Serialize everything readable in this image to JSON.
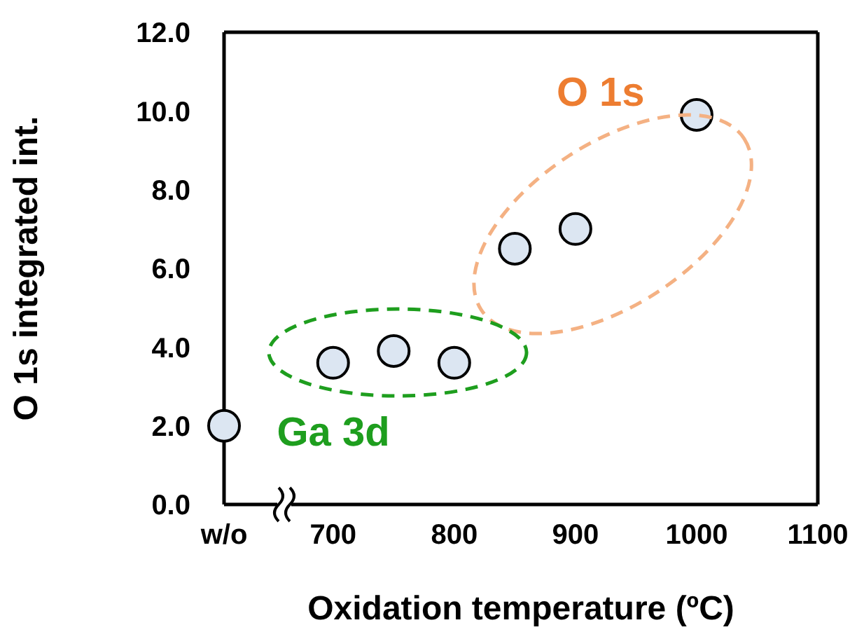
{
  "chart_data": {
    "type": "scatter",
    "xlabel": "Oxidation temperature (ºC)",
    "ylabel": "O 1s integrated int.",
    "x": [
      610,
      700,
      750,
      800,
      850,
      900,
      1000
    ],
    "values": [
      2.0,
      3.6,
      3.9,
      3.6,
      6.5,
      7.0,
      9.9
    ],
    "color": "#dce6f2",
    "marker": "circle",
    "xlim": [
      610,
      1100
    ],
    "xticks": [
      {
        "value": 610,
        "label": "w/o"
      },
      700,
      800,
      900,
      1000,
      1100
    ],
    "ylim": [
      0,
      12
    ],
    "yticks": [
      {
        "value": 0,
        "label": "0.0"
      },
      {
        "value": 2,
        "label": "2.0"
      },
      {
        "value": 4,
        "label": "4.0"
      },
      {
        "value": 6,
        "label": "6.0"
      },
      {
        "value": 8,
        "label": "8.0"
      },
      {
        "value": 10,
        "label": "10.0"
      },
      {
        "value": 12,
        "label": "12.0"
      }
    ],
    "annotations": [
      "O 1s",
      "Ga 3d"
    ]
  }
}
